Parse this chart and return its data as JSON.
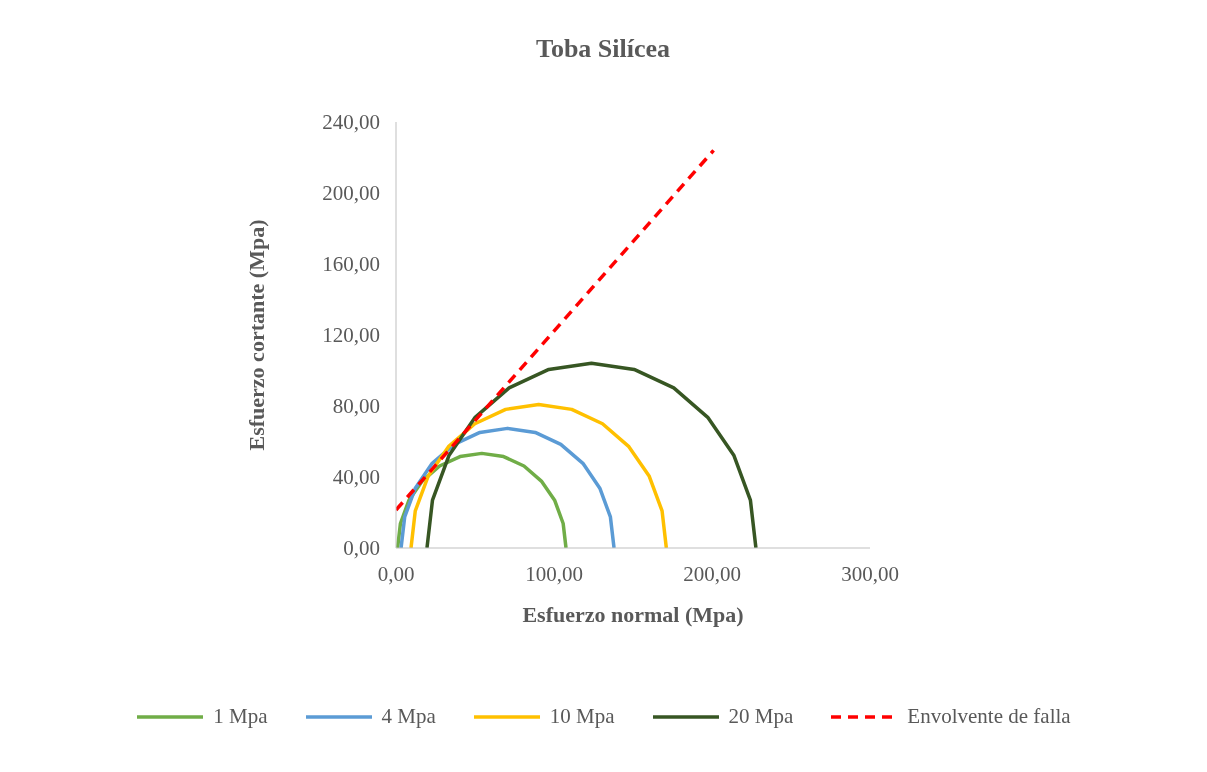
{
  "chart_data": {
    "type": "line",
    "title": "Toba Silícea",
    "xlabel": "Esfuerzo normal (Mpa)",
    "ylabel": "Esfuerzo cortante (Mpa)",
    "xlim": [
      0,
      300
    ],
    "xticks": [
      {
        "value": 0,
        "label": "0,00"
      },
      {
        "value": 100,
        "label": "100,00"
      },
      {
        "value": 200,
        "label": "200,00"
      },
      {
        "value": 300,
        "label": "300,00"
      }
    ],
    "ylim": [
      0,
      240
    ],
    "yticks": [
      {
        "value": 0,
        "label": "0,00"
      },
      {
        "value": 40,
        "label": "40,00"
      },
      {
        "value": 80,
        "label": "80,00"
      },
      {
        "value": 120,
        "label": "120,00"
      },
      {
        "value": 160,
        "label": "160,00"
      },
      {
        "value": 200,
        "label": "200,00"
      },
      {
        "value": 240,
        "label": "240,00"
      }
    ],
    "grid": false,
    "legend": "bottom",
    "marker": "none",
    "series": [
      {
        "name": "1 Mpa",
        "color": "#70ad47",
        "line_style": "solid",
        "x": [
          1.0,
          2.8,
          8.1,
          16.6,
          27.6,
          40.5,
          54.3,
          68.1,
          81.0,
          92.0,
          100.5,
          105.8,
          107.6
        ],
        "values": [
          0,
          13.8,
          26.7,
          37.7,
          46.2,
          51.5,
          53.3,
          51.5,
          46.2,
          37.7,
          26.7,
          13.8,
          0
        ]
      },
      {
        "name": "4 Mpa",
        "color": "#5b9bd5",
        "line_style": "solid",
        "x": [
          3.2,
          5.5,
          12.2,
          22.9,
          36.9,
          53.1,
          70.6,
          88.1,
          104.3,
          118.3,
          129.0,
          135.7,
          138.0
        ],
        "values": [
          0,
          17.5,
          33.7,
          47.7,
          58.4,
          65.1,
          67.4,
          65.1,
          58.4,
          47.7,
          33.7,
          17.5,
          0
        ]
      },
      {
        "name": "10 Mpa",
        "color": "#ffc000",
        "line_style": "solid",
        "x": [
          9.5,
          12.2,
          20.3,
          33.2,
          49.9,
          69.4,
          90.3,
          111.2,
          130.7,
          147.4,
          160.3,
          168.4,
          171.1
        ],
        "values": [
          0,
          20.9,
          40.4,
          57.1,
          70.0,
          78.1,
          80.8,
          78.1,
          70.0,
          57.1,
          40.4,
          20.9,
          0
        ]
      },
      {
        "name": "20 Mpa",
        "color": "#375623",
        "line_style": "solid",
        "x": [
          19.6,
          23.1,
          33.5,
          50.1,
          71.6,
          96.7,
          123.7,
          150.7,
          175.8,
          197.3,
          213.9,
          224.3,
          227.8
        ],
        "values": [
          0,
          27.0,
          52.1,
          73.6,
          90.2,
          100.6,
          104.1,
          100.6,
          90.2,
          73.6,
          52.1,
          27.0,
          0
        ]
      },
      {
        "name": "Envolvente de falla",
        "color": "#ff0000",
        "line_style": "dashed",
        "x": [
          0,
          201
        ],
        "values": [
          21.4,
          224
        ]
      }
    ]
  }
}
